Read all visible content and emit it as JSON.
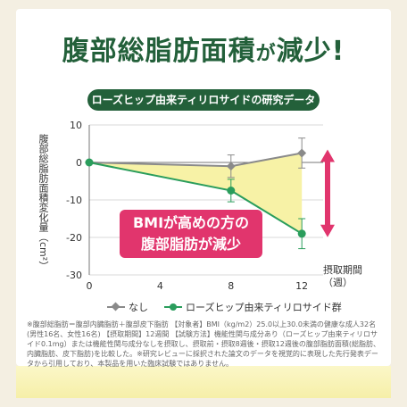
{
  "headline": {
    "main": "腹部総脂肪面積",
    "particle": "が",
    "tail": "減少!"
  },
  "banner": "ローズヒップ由来ティリロサイドの研究データ",
  "callout": {
    "line1": "BMIが高めの方の",
    "line2": "腹部脂肪が減少"
  },
  "note": "※腹部総脂肪＝腹部内臓脂肪＋腹部皮下脂肪 【対象者】BMI（kg/m2）25.0以上30.0未満の健康な成人32名(男性16名、女性16名) 【摂取期間】12週間 【試験方法】機能性関与成分あり（ローズヒップ由来ティリロサイド0.1mg）または機能性関与成分なしを摂取し、摂取前・摂取8週後・摂取12週後の腹部脂肪面積(総脂肪、内臓脂肪、皮下脂肪)を比較した。※研究レビューに採択された論文のデータを視覚的に表現した先行発表データから引用しており、本製品を用いた臨床試験ではありません。",
  "colors": {
    "brand_green": "#23603a",
    "series_none": "#8a8a8a",
    "series_tiliroside": "#2a9d5c",
    "fill": "#f7f2a6",
    "accent_pink": "#e1356d",
    "background": "#f4efe2"
  },
  "chart_data": {
    "type": "line",
    "ylabel": "腹部総脂肪面積変化量（cm²）",
    "xlabel": "摂取期間（週）",
    "x": [
      0,
      8,
      12
    ],
    "xticks": [
      0,
      4,
      8,
      12
    ],
    "yticks": [
      10,
      0,
      -10,
      -20,
      -30
    ],
    "ylim": [
      -30,
      10
    ],
    "xlim": [
      0,
      13.2
    ],
    "grid": true,
    "legend_position": "bottom",
    "series": [
      {
        "name": "なし",
        "values": [
          0,
          -1,
          2.5
        ],
        "error": [
          0,
          3,
          4
        ],
        "marker": "diamond",
        "color": "#8a8a8a"
      },
      {
        "name": "ローズヒップ由来ティリロサイド群",
        "values": [
          0,
          -7.5,
          -19
        ],
        "error": [
          0,
          3,
          4
        ],
        "marker": "circle",
        "color": "#2a9d5c"
      }
    ],
    "annotations": [
      {
        "text": "BMIが高めの方の腹部脂肪が減少"
      }
    ]
  }
}
